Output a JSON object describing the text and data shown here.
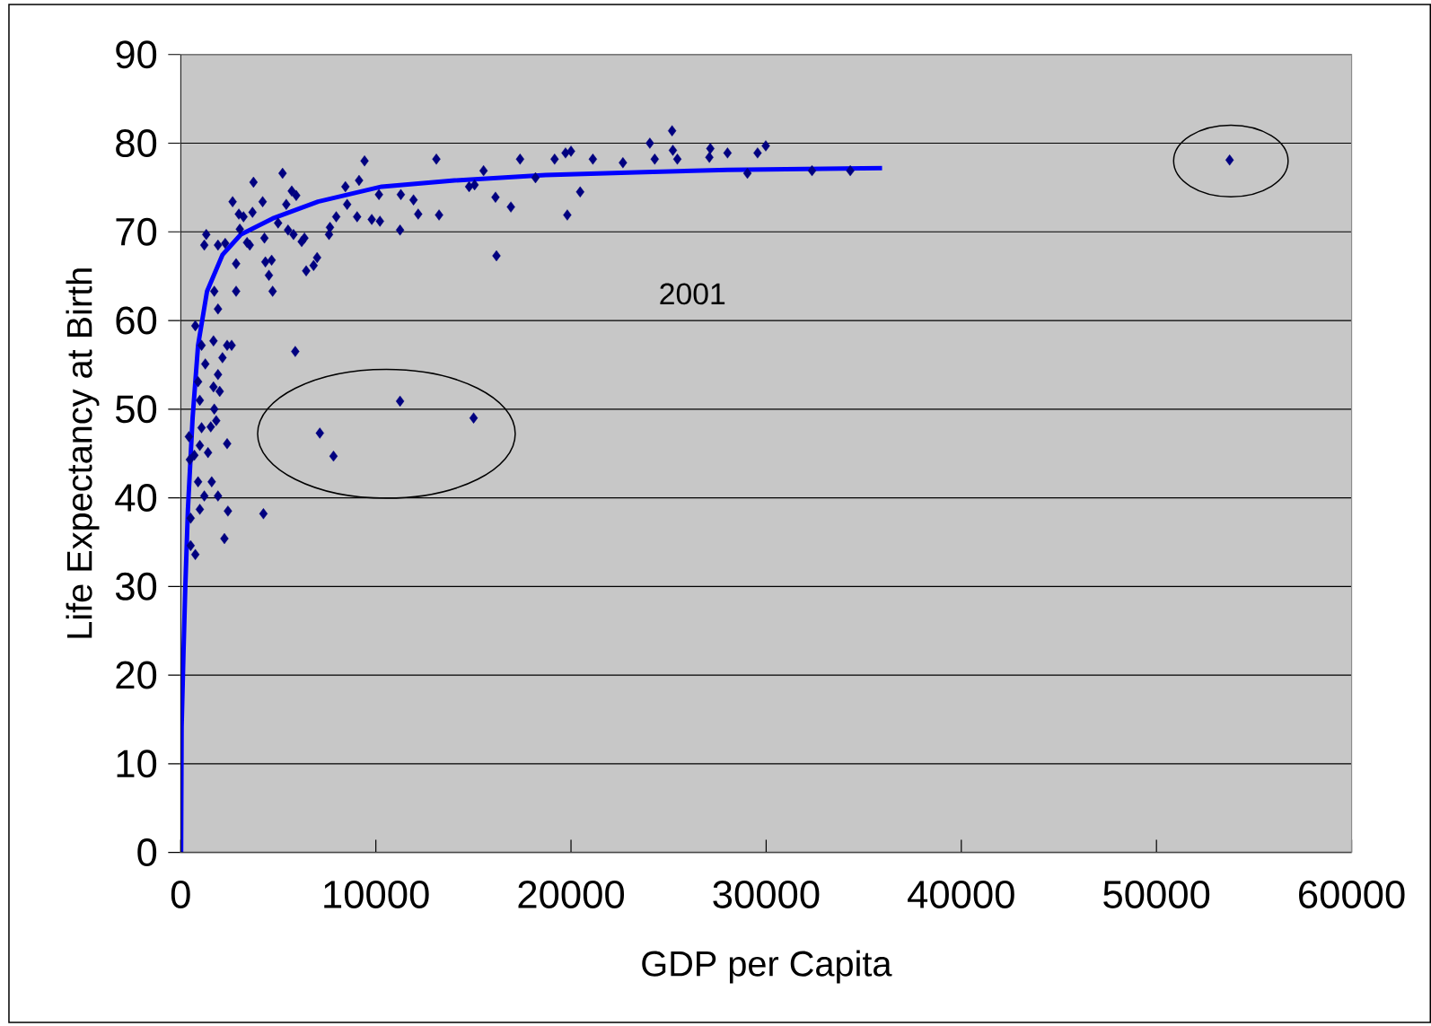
{
  "chart_data": {
    "type": "scatter",
    "xlabel": "GDP per Capita",
    "ylabel": "Life Expectancy at Birth",
    "annotations": [
      "2001"
    ],
    "xlim": [
      0,
      60000
    ],
    "ylim": [
      0,
      90
    ],
    "xticks": [
      0,
      10000,
      20000,
      30000,
      40000,
      50000,
      60000
    ],
    "yticks": [
      0,
      10,
      20,
      30,
      40,
      50,
      60,
      70,
      80,
      90
    ],
    "grid": "y",
    "marker": "diamond",
    "series": [
      {
        "color": "#000080",
        "x": [
          53750,
          7130,
          7830,
          11240,
          15010,
          4240,
          5870,
          25180,
          24040,
          25220,
          24290,
          25450,
          27090,
          27140,
          28020,
          29560,
          29980,
          29040,
          32350,
          34310,
          22660,
          21120,
          20000,
          19720,
          19160,
          20470,
          19810,
          17390,
          16920,
          16130,
          16180,
          15520,
          14780,
          15060,
          18180,
          13100,
          13240,
          11280,
          11930,
          12170,
          11240,
          10160,
          9790,
          10210,
          9420,
          9140,
          8440,
          8530,
          9040,
          7970,
          7600,
          7650,
          6990,
          6810,
          6430,
          6200,
          6340,
          5780,
          5500,
          5920,
          5690,
          5410,
          5220,
          4990,
          4710,
          4520,
          4660,
          4340,
          4290,
          3730,
          4200,
          3680,
          2980,
          3220,
          2660,
          3030,
          3400,
          2840,
          2840,
          3540,
          2280,
          1910,
          1310,
          1210,
          1720,
          1910,
          2380,
          2610,
          2140,
          1910,
          1680,
          2000,
          1720,
          1820,
          1540,
          2380,
          1910,
          2420,
          2240,
          750,
          1070,
          890,
          980,
          1070,
          980,
          700,
          890,
          1210,
          980,
          750,
          510,
          510,
          470,
          420,
          1400,
          1590,
          1260,
          1680
        ],
        "values": [
          78.1,
          47.3,
          44.7,
          50.9,
          49.0,
          38.2,
          56.5,
          81.4,
          80.0,
          79.2,
          78.2,
          78.2,
          78.4,
          79.4,
          78.9,
          78.9,
          79.7,
          76.6,
          76.9,
          76.9,
          77.8,
          78.2,
          79.1,
          78.9,
          78.2,
          74.5,
          71.9,
          78.2,
          72.8,
          73.9,
          67.3,
          76.9,
          75.1,
          75.3,
          76.1,
          78.2,
          71.9,
          74.2,
          73.6,
          72.0,
          70.2,
          74.2,
          71.4,
          71.2,
          78.0,
          75.8,
          75.1,
          73.1,
          71.7,
          71.7,
          69.7,
          70.5,
          67.1,
          66.2,
          65.6,
          68.9,
          69.3,
          69.7,
          70.2,
          74.1,
          74.6,
          73.1,
          76.6,
          71.0,
          63.3,
          65.1,
          66.8,
          66.6,
          69.3,
          75.6,
          73.4,
          72.2,
          72.0,
          71.7,
          73.4,
          70.3,
          68.8,
          66.4,
          63.3,
          68.5,
          68.7,
          68.5,
          69.7,
          68.5,
          63.3,
          61.3,
          57.2,
          57.2,
          55.8,
          53.9,
          52.5,
          52.0,
          50.0,
          48.7,
          48.0,
          46.1,
          40.2,
          38.5,
          35.4,
          59.4,
          57.2,
          53.1,
          51.0,
          47.9,
          45.9,
          44.8,
          41.8,
          40.2,
          38.7,
          33.6,
          34.6,
          37.7,
          44.3,
          46.9,
          45.1,
          41.8,
          55.1,
          57.7
        ]
      },
      {
        "type": "line",
        "color": "#0000ff",
        "marker": "none",
        "x": [
          20,
          47,
          140,
          230,
          370,
          610,
          890,
          1350,
          2140,
          3080,
          4710,
          7040,
          10300,
          14030,
          18690,
          23360,
          28020,
          35940
        ],
        "values": [
          0,
          14.1,
          22.3,
          29.5,
          38.7,
          49.0,
          57.2,
          63.3,
          67.4,
          69.7,
          71.5,
          73.4,
          75.1,
          75.8,
          76.4,
          76.7,
          77.0,
          77.2
        ]
      }
    ]
  }
}
